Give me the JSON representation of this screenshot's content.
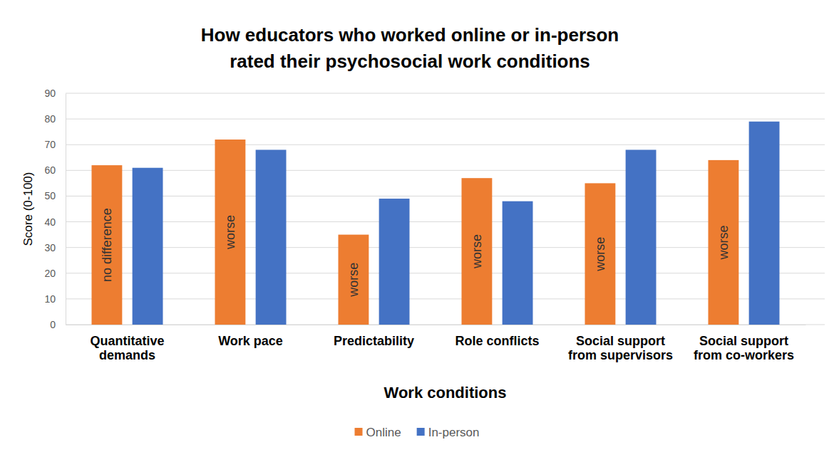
{
  "chart_data": {
    "type": "bar",
    "title": [
      "How educators who worked online or in-person",
      "rated their psychosocial work conditions"
    ],
    "x_label": "Work conditions",
    "y_label": "Score (0-100)",
    "categories": [
      "Quantitative demands",
      "Work pace",
      "Predictability",
      "Role conflicts",
      "Social support from supervisors",
      "Social support from co-workers"
    ],
    "series": [
      {
        "name": "Online",
        "color": "#ed7d31",
        "values": [
          62,
          72,
          35,
          57,
          55,
          64
        ]
      },
      {
        "name": "In-person",
        "color": "#4472c4",
        "values": [
          61,
          68,
          49,
          48,
          68,
          79
        ]
      }
    ],
    "annotations": [
      "no difference",
      "worse",
      "worse",
      "worse",
      "worse",
      "worse"
    ],
    "ylim": [
      0,
      90
    ],
    "yticks": [
      0,
      10,
      20,
      30,
      40,
      50,
      60,
      70,
      80,
      90
    ],
    "grid": true,
    "legend": "bottom"
  }
}
